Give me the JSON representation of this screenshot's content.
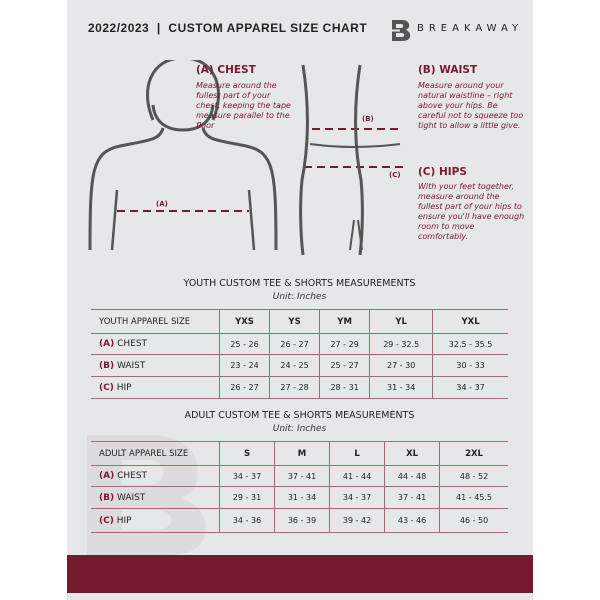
{
  "header": {
    "title": "2022/2023  |  CUSTOM APPAREL SIZE CHART",
    "brand": "BREAKAWAY"
  },
  "measures": {
    "chest": {
      "title": "(A) CHEST",
      "desc": "Measure around the fullest part of your chest, keeping the tape measure parallel to the floor",
      "marker": "(A)"
    },
    "waist": {
      "title": "(B) WAIST",
      "desc": "Measure around your natural waistline – right above your hips. Be careful not to squeeze too tight to allow a little give.",
      "marker": "(B)"
    },
    "hips": {
      "title": "(C) HIPS",
      "desc": "With your feet together, measure around the fullest part of your hips to ensure you'll have enough room to move comfortably.",
      "marker": "(C)"
    }
  },
  "youth": {
    "caption": "YOUTH CUSTOM TEE & SHORTS MEASUREMENTS",
    "unit": "Unit: Inches",
    "header": [
      "YOUTH APPAREL SIZE",
      "YXS",
      "YS",
      "YM",
      "YL",
      "YXL"
    ],
    "rows": [
      {
        "code": "(A)",
        "name": "CHEST",
        "values": [
          "25 - 26",
          "26 - 27",
          "27 - 29",
          "29 - 32.5",
          "32.5 - 35.5"
        ]
      },
      {
        "code": "(B)",
        "name": "WAIST",
        "values": [
          "23 - 24",
          "24 - 25",
          "25 - 27",
          "27 - 30",
          "30 - 33"
        ]
      },
      {
        "code": "(C)",
        "name": "HIP",
        "values": [
          "26 - 27",
          "27 - 28",
          "28 - 31",
          "31 - 34",
          "34 - 37"
        ]
      }
    ]
  },
  "adult": {
    "caption": "ADULT CUSTOM TEE & SHORTS MEASUREMENTS",
    "unit": "Unit: Inches",
    "header": [
      "ADULT APPAREL SIZE",
      "S",
      "M",
      "L",
      "XL",
      "2XL"
    ],
    "rows": [
      {
        "code": "(A)",
        "name": "CHEST",
        "values": [
          "34 - 37",
          "37 - 41",
          "41 - 44",
          "44 - 48",
          "48 - 52"
        ]
      },
      {
        "code": "(B)",
        "name": "WAIST",
        "values": [
          "29 - 31",
          "31 - 34",
          "34 - 37",
          "37 - 41",
          "41 - 45.5"
        ]
      },
      {
        "code": "(C)",
        "name": "HIP",
        "values": [
          "34 - 36",
          "36 - 39",
          "39 - 42",
          "43 - 46",
          "46 - 50"
        ]
      }
    ]
  },
  "colors": {
    "accent": "#741b30",
    "panel": "#e6e7e9"
  }
}
